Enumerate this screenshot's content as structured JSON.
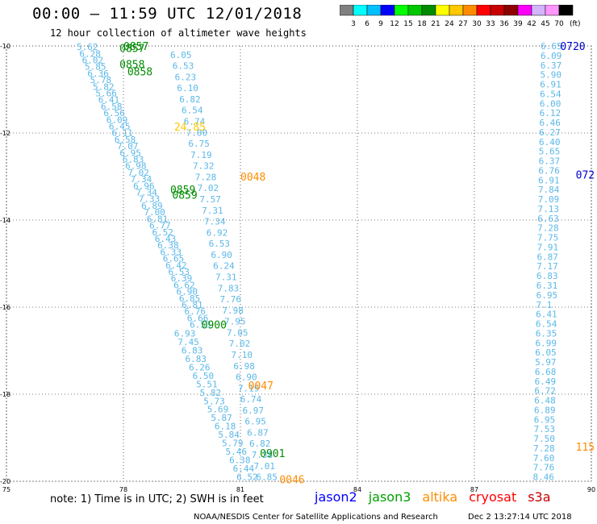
{
  "header": {
    "title": "00:00 – 11:59 UTC 12/01/2018",
    "subtitle": "12 hour collection of altimeter wave heights"
  },
  "legend": {
    "unit": "(ft)",
    "colors": [
      "#808080",
      "#00ffff",
      "#00bfff",
      "#0000ff",
      "#00ff00",
      "#00c800",
      "#008c00",
      "#ffff00",
      "#ffc800",
      "#ff8c00",
      "#ff0000",
      "#c80000",
      "#8c0000",
      "#ff00ff",
      "#d2b4ff",
      "#ff96ff",
      "#000000"
    ],
    "labels": [
      "3",
      "6",
      "9",
      "12",
      "15",
      "18",
      "21",
      "24",
      "27",
      "30",
      "33",
      "36",
      "39",
      "42",
      "45",
      "70"
    ]
  },
  "axes": {
    "x_ticks": [
      75,
      78,
      81,
      84,
      87,
      90
    ],
    "y_ticks": [
      -10,
      -12,
      -14,
      -16,
      -18,
      -20
    ],
    "x_range": [
      75,
      90
    ],
    "y_range": [
      -20,
      -10
    ]
  },
  "tracks": {
    "left_dense": {
      "color": "#5bb8e8",
      "from": [
        76.8,
        -10.02
      ],
      "to": [
        79.7,
        -16.4
      ],
      "values": [
        "5.62",
        "6.28",
        "6.02",
        "5.85",
        "6.36",
        "5.78",
        "5.82",
        "5.66",
        "6.41",
        "6.58",
        "6.56",
        "6.09",
        "6.45",
        "6.11",
        "6.58",
        "7.07",
        "6.95",
        "6.83",
        "6.98",
        "7.02",
        "7.34",
        "6.96",
        "7.34",
        "7.33",
        "6.89",
        "7.00",
        "6.81",
        "6.77",
        "6.52",
        "6.43",
        "6.38",
        "6.33",
        "6.65",
        "6.42",
        "6.53",
        "6.39",
        "6.62",
        "6.90",
        "6.85",
        "6.81",
        "6.76",
        "6.66",
        "6.53"
      ]
    },
    "left_mid": {
      "color": "#5bb8e8",
      "from": [
        79.3,
        -16.6
      ],
      "to": [
        80.9,
        -19.9
      ],
      "values": [
        "6.93",
        "7.45",
        "6.83",
        "6.83",
        "6.26",
        "6.50",
        "5.51",
        "5.82",
        "5.73",
        "5.69",
        "5.87",
        "6.18",
        "5.84",
        "5.79",
        "5.46",
        "6.38",
        "6.44",
        "6.52"
      ]
    },
    "left_right_col": {
      "color": "#5bb8e8",
      "from": [
        79.2,
        -10.2
      ],
      "to": [
        81.4,
        -19.9
      ],
      "values": [
        "6.05",
        "6.53",
        "6.23",
        "6.10",
        "6.82",
        "6.54",
        "6.74",
        "7.00",
        "6.75",
        "7.19",
        "7.32",
        "7.28",
        "7.02",
        "7.57",
        "7.31",
        "7.34",
        "6.92",
        "6.53",
        "6.90",
        "6.24",
        "7.31",
        "7.83",
        "7.76",
        "7.98",
        "7.95",
        "7.05",
        "7.02",
        "7.10",
        "6.98",
        "6.90",
        "7.19",
        "6.74",
        "6.97",
        "6.95",
        "6.87",
        "6.82",
        "7.38",
        "7.01",
        "6.85"
      ]
    },
    "right_track": {
      "color": "#5bb8e8",
      "from": [
        88.7,
        -10.0
      ],
      "to": [
        88.5,
        -19.9
      ],
      "values": [
        "6.65",
        "6.09",
        "6.37",
        "5.90",
        "6.91",
        "6.54",
        "6.00",
        "6.12",
        "6.46",
        "6.27",
        "6.40",
        "5.65",
        "6.37",
        "6.76",
        "6.91",
        "7.84",
        "7.09",
        "7.13",
        "6.63",
        "7.28",
        "7.75",
        "7.91",
        "6.87",
        "7.17",
        "6.83",
        "6.31",
        "6.95",
        "7.1",
        "6.41",
        "6.54",
        "6.35",
        "6.99",
        "6.05",
        "5.97",
        "6.68",
        "6.49",
        "6.72",
        "6.48",
        "6.89",
        "6.95",
        "7.53",
        "7.50",
        "7.28",
        "7.60",
        "7.76",
        "8.46"
      ]
    }
  },
  "time_labels": [
    {
      "text": "0857",
      "color": "#008c00",
      "lon": 78.0,
      "lat": -10.0
    },
    {
      "text": "0857",
      "color": "#008c00",
      "lon": 77.9,
      "lat": -10.05
    },
    {
      "text": "0858",
      "color": "#008c00",
      "lon": 77.9,
      "lat": -10.42
    },
    {
      "text": "0858",
      "color": "#008c00",
      "lon": 78.1,
      "lat": -10.58
    },
    {
      "text": "0859",
      "color": "#008c00",
      "lon": 79.2,
      "lat": -13.3
    },
    {
      "text": "0859",
      "color": "#008c00",
      "lon": 79.25,
      "lat": -13.42
    },
    {
      "text": "0900",
      "color": "#008c00",
      "lon": 80.0,
      "lat": -16.4
    },
    {
      "text": "0901",
      "color": "#008c00",
      "lon": 81.5,
      "lat": -19.35
    },
    {
      "text": "0048",
      "color": "#ff8c00",
      "lon": 81.0,
      "lat": -13.0
    },
    {
      "text": "0047",
      "color": "#ff8c00",
      "lon": 81.2,
      "lat": -17.8
    },
    {
      "text": "0046",
      "color": "#ff8c00",
      "lon": 82.0,
      "lat": -19.95
    },
    {
      "text": "0720",
      "color": "#0000c8",
      "lon": 89.2,
      "lat": -10.0
    },
    {
      "text": "072",
      "color": "#0000c8",
      "lon": 89.6,
      "lat": -12.95
    },
    {
      "text": "115",
      "color": "#ff8c00",
      "lon": 89.6,
      "lat": -19.2
    },
    {
      "text": "24.85",
      "color": "#ffc800",
      "lon": 79.3,
      "lat": -11.85
    }
  ],
  "footer": {
    "note": "note: 1) Time is in UTC; 2) SWH is in feet",
    "satellites": [
      {
        "name": "jason2",
        "color": "#0000ff"
      },
      {
        "name": "jason3",
        "color": "#00a000"
      },
      {
        "name": "altika",
        "color": "#ff8c00"
      },
      {
        "name": "cryosat",
        "color": "#ff0000"
      },
      {
        "name": "s3a",
        "color": "#c80000"
      }
    ],
    "credit": "NOAA/NESDIS Center for Satellite Applications and Research",
    "timestamp": "Dec  2 13:27:14 UTC 2018"
  }
}
